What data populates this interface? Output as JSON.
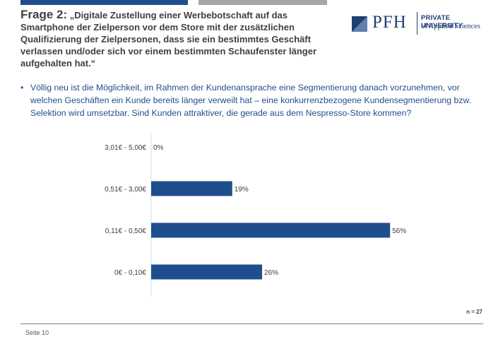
{
  "header": {
    "question_label": "Frage 2:",
    "question_text": "„Digitale Zustellung einer Werbebotschaft auf das Smartphone der Zielperson vor dem Store mit der zusätzlichen Qualifizierung der Zielpersonen, dass sie ein bestimmtes Geschäft verlassen und/oder sich vor einem bestimmten Schaufenster länger aufgehalten hat.“"
  },
  "logo": {
    "name": "PFH",
    "line1": "PRIVATE UNIVERSITY",
    "line2": "of Applied Sciences"
  },
  "bullet": {
    "symbol": "•",
    "text": "Völlig neu ist die Möglichkeit, im Rahmen der Kundenansprache eine Segmentierung danach vorzunehmen, vor welchen Geschäften ein Kunde bereits länger verweilt hat – eine konkurrenzbezogene Kundensegmentierung bzw. Selektion wird umsetzbar. Sind Kunden attraktiver, die gerade aus dem Nespresso-Store kommen?"
  },
  "colors": {
    "bar": "#1f4e8c",
    "axis": "#c6e0e8",
    "accent_grey": "#a6a6a6"
  },
  "chart_data": {
    "type": "bar",
    "orientation": "horizontal",
    "categories": [
      "3,01€ - 5,00€",
      "0,51€ - 3,00€",
      "0,11€ - 0,50€",
      "0€ - 0,10€"
    ],
    "values": [
      0,
      19,
      56,
      26
    ],
    "data_labels": [
      "0%",
      "19%",
      "56%",
      "26%"
    ],
    "unit": "%",
    "xlim": [
      0,
      60
    ],
    "grid": false
  },
  "note": "n = 27",
  "footer": {
    "page": "Seite 10"
  }
}
